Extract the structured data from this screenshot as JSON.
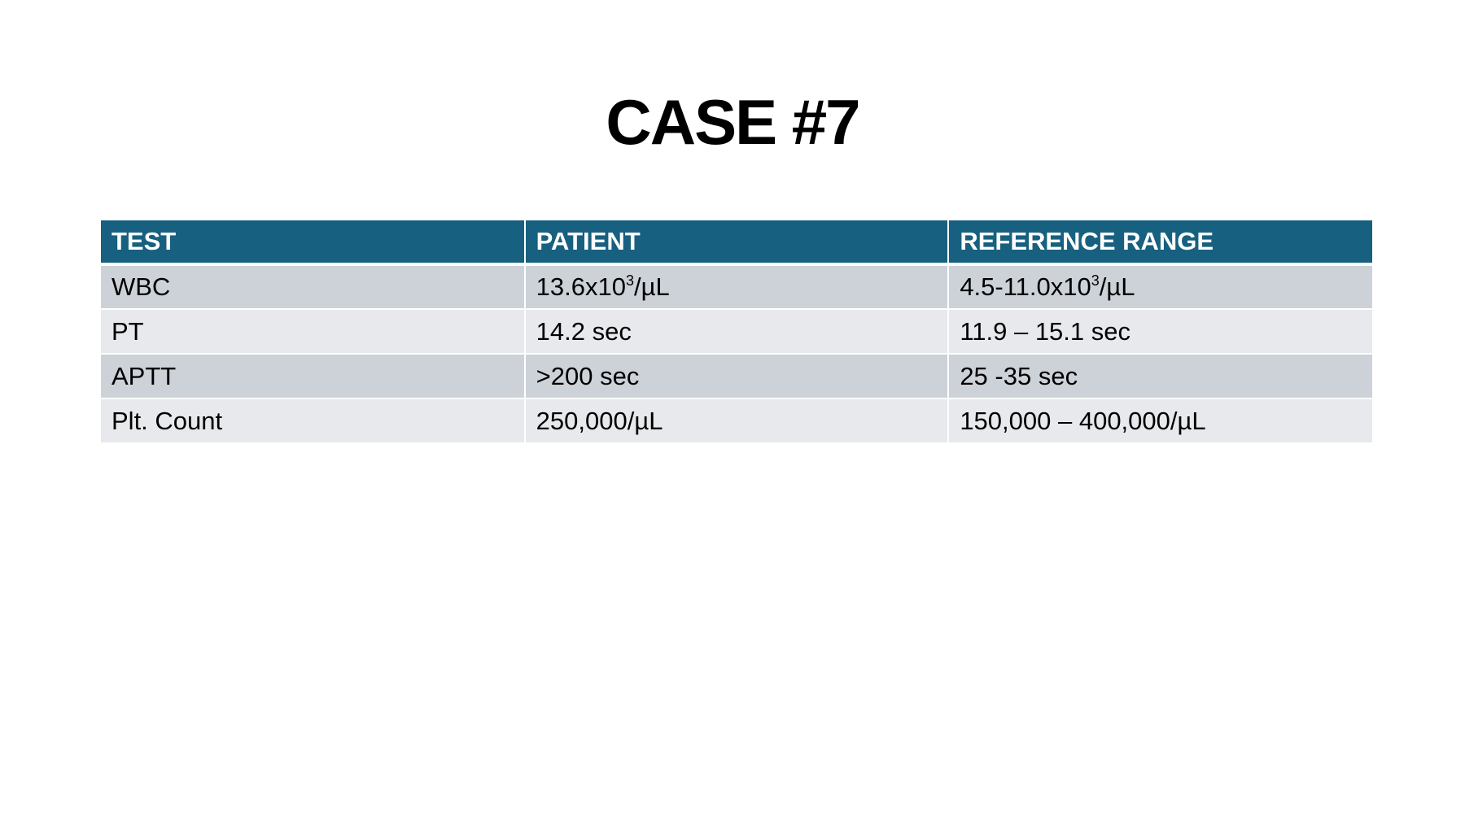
{
  "slide": {
    "title": "CASE #7"
  },
  "table": {
    "headers": [
      "TEST",
      "PATIENT",
      "REFERENCE RANGE"
    ],
    "rows": [
      {
        "test": "WBC",
        "patient": {
          "base": "13.6x10",
          "sup": "3",
          "unit": "/µL"
        },
        "reference": {
          "base": "4.5-11.0x10",
          "sup": "3",
          "unit": "/µL"
        }
      },
      {
        "test": "PT",
        "patient": "14.2 sec",
        "reference": "11.9 – 15.1 sec"
      },
      {
        "test": "APTT",
        "patient": ">200 sec",
        "reference": "25 -35 sec"
      },
      {
        "test": "Plt. Count",
        "patient": "250,000/µL",
        "reference": "150,000 – 400,000/µL"
      }
    ]
  },
  "colors": {
    "header_bg": "#17607f",
    "header_text": "#ffffff",
    "row_dark": "#cdd2d9",
    "row_light": "#e7e9ec"
  }
}
